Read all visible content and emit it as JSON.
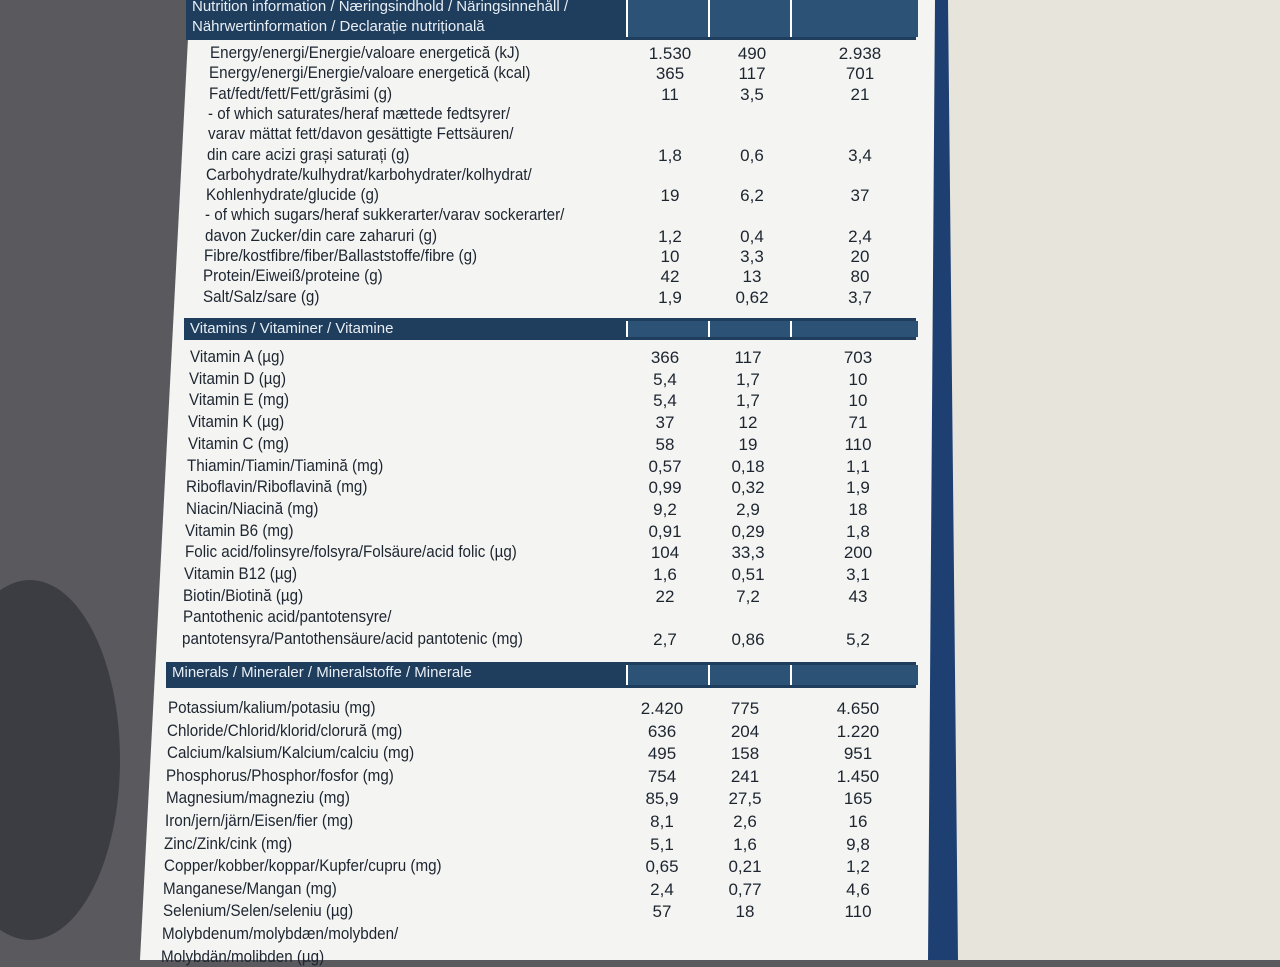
{
  "header": {
    "title_lines": [
      "Nutrition information / Næringsindhold / Näringsinnehåll /",
      "Nährwertinformation / Declarație nutrițională"
    ]
  },
  "sections": [
    {
      "rows": [
        {
          "label": [
            "Energy/energi/Energie/valoare energetică (kJ)"
          ],
          "values": [
            "1.530",
            "490",
            "2.938"
          ]
        },
        {
          "label": [
            "Energy/energi/Energie/valoare energetică (kcal)"
          ],
          "values": [
            "365",
            "117",
            "701"
          ]
        },
        {
          "label": [
            "Fat/fedt/fett/Fett/grăsimi (g)"
          ],
          "values": [
            "11",
            "3,5",
            "21"
          ]
        },
        {
          "label": [
            "- of which saturates/heraf mættede fedtsyrer/",
            "varav mättat fett/davon gesättigte Fettsäuren/",
            "din care acizi grași saturați (g)"
          ],
          "values": [
            "1,8",
            "0,6",
            "3,4"
          ]
        },
        {
          "label": [
            "Carbohydrate/kulhydrat/karbohydrater/kolhydrat/",
            "Kohlenhydrate/glucide (g)"
          ],
          "values": [
            "19",
            "6,2",
            "37"
          ]
        },
        {
          "label": [
            "- of which sugars/heraf sukkerarter/varav sockerarter/",
            "davon Zucker/din care zaharuri (g)"
          ],
          "values": [
            "1,2",
            "0,4",
            "2,4"
          ]
        },
        {
          "label": [
            "Fibre/kostfibre/fiber/Ballaststoffe/fibre (g)"
          ],
          "values": [
            "10",
            "3,3",
            "20"
          ]
        },
        {
          "label": [
            "Protein/Eiweiß/proteine (g)"
          ],
          "values": [
            "42",
            "13",
            "80"
          ]
        },
        {
          "label": [
            "Salt/Salz/sare (g)"
          ],
          "values": [
            "1,9",
            "0,62",
            "3,7"
          ]
        }
      ]
    },
    {
      "title": "Vitamins / Vitaminer / Vitamine",
      "rows": [
        {
          "label": [
            "Vitamin A (µg)"
          ],
          "values": [
            "366",
            "117",
            "703"
          ]
        },
        {
          "label": [
            "Vitamin D (µg)"
          ],
          "values": [
            "5,4",
            "1,7",
            "10"
          ]
        },
        {
          "label": [
            "Vitamin E (mg)"
          ],
          "values": [
            "5,4",
            "1,7",
            "10"
          ]
        },
        {
          "label": [
            "Vitamin K (µg)"
          ],
          "values": [
            "37",
            "12",
            "71"
          ]
        },
        {
          "label": [
            "Vitamin C (mg)"
          ],
          "values": [
            "58",
            "19",
            "110"
          ]
        },
        {
          "label": [
            "Thiamin/Tiamin/Tiamină (mg)"
          ],
          "values": [
            "0,57",
            "0,18",
            "1,1"
          ]
        },
        {
          "label": [
            "Riboflavin/Riboflavină (mg)"
          ],
          "values": [
            "0,99",
            "0,32",
            "1,9"
          ]
        },
        {
          "label": [
            "Niacin/Niacină (mg)"
          ],
          "values": [
            "9,2",
            "2,9",
            "18"
          ]
        },
        {
          "label": [
            "Vitamin B6 (mg)"
          ],
          "values": [
            "0,91",
            "0,29",
            "1,8"
          ]
        },
        {
          "label": [
            "Folic acid/folinsyre/folsyra/Folsäure/acid folic (µg)"
          ],
          "values": [
            "104",
            "33,3",
            "200"
          ]
        },
        {
          "label": [
            "Vitamin B12 (µg)"
          ],
          "values": [
            "1,6",
            "0,51",
            "3,1"
          ]
        },
        {
          "label": [
            "Biotin/Biotină (µg)"
          ],
          "values": [
            "22",
            "7,2",
            "43"
          ]
        },
        {
          "label": [
            "Pantothenic acid/pantotensyre/",
            "pantotensyra/Pantothensäure/acid pantotenic (mg)"
          ],
          "values": [
            "2,7",
            "0,86",
            "5,2"
          ]
        }
      ]
    },
    {
      "title": "Minerals / Mineraler / Mineralstoffe / Minerale",
      "rows": [
        {
          "label": [
            "Potassium/kalium/potasiu (mg)"
          ],
          "values": [
            "2.420",
            "775",
            "4.650"
          ]
        },
        {
          "label": [
            "Chloride/Chlorid/klorid/clorură (mg)"
          ],
          "values": [
            "636",
            "204",
            "1.220"
          ]
        },
        {
          "label": [
            "Calcium/kalsium/Kalcium/calciu (mg)"
          ],
          "values": [
            "495",
            "158",
            "951"
          ]
        },
        {
          "label": [
            "Phosphorus/Phosphor/fosfor (mg)"
          ],
          "values": [
            "754",
            "241",
            "1.450"
          ]
        },
        {
          "label": [
            "Magnesium/magneziu (mg)"
          ],
          "values": [
            "85,9",
            "27,5",
            "165"
          ]
        },
        {
          "label": [
            "Iron/jern/järn/Eisen/fier (mg)"
          ],
          "values": [
            "8,1",
            "2,6",
            "16"
          ]
        },
        {
          "label": [
            "Zinc/Zink/cink (mg)"
          ],
          "values": [
            "5,1",
            "1,6",
            "9,8"
          ]
        },
        {
          "label": [
            "Copper/kobber/koppar/Kupfer/cupru (mg)"
          ],
          "values": [
            "0,65",
            "0,21",
            "1,2"
          ]
        },
        {
          "label": [
            "Manganese/Mangan (mg)"
          ],
          "values": [
            "2,4",
            "0,77",
            "4,6"
          ]
        },
        {
          "label": [
            "Selenium/Selen/seleniu (µg)"
          ],
          "values": [
            "57",
            "18",
            "110"
          ]
        },
        {
          "label": [
            "Molybdenum/molybdæn/molybden/",
            "Molybdän/molibden (µg)"
          ]
        }
      ]
    }
  ]
}
